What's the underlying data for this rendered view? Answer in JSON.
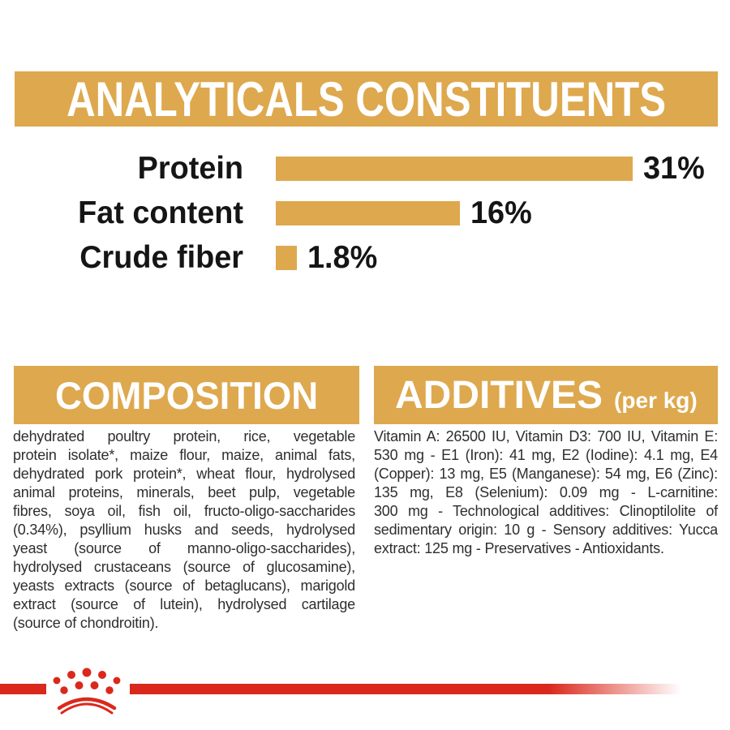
{
  "colors": {
    "gold": "#DEA84E",
    "red": "#DA291C",
    "heading_text": "#FFFFFF",
    "label_text": "#151515",
    "body_text": "#2E2E2E",
    "background": "#FFFFFF"
  },
  "analyticals": {
    "title": "ANALYTICALS CONSTITUENTS",
    "chart_data": {
      "type": "bar",
      "orientation": "horizontal",
      "categories": [
        "Protein",
        "Fat content",
        "Crude fiber"
      ],
      "values": [
        31,
        16,
        1.8
      ],
      "value_labels": [
        "31%",
        "16%",
        "1.8%"
      ],
      "xlim": [
        0,
        31
      ],
      "bar_color": "#DEA84E",
      "grid": false,
      "legend": false
    }
  },
  "composition": {
    "title": "COMPOSITION",
    "lines": [
      "dehydrated poultry protein, rice, vegetable",
      "protein isolate*, maize flour, maize, animal fats,",
      "dehydrated pork protein*, wheat flour, hydrolysed",
      "animal proteins, minerals, beet pulp, vegetable",
      "fibres, soya oil, fish oil, fructo-oligo-saccharides",
      "(0.34%), psyllium husks and seeds, hydrolysed",
      "yeast (source of manno-oligo-saccharides),",
      "hydrolysed crustaceans (source of glucosamine),",
      "yeasts extracts (source of betaglucans), marigold",
      "extract (source of lutein), hydrolysed cartilage",
      "(source of chondroitin)."
    ]
  },
  "additives": {
    "title": "ADDITIVES",
    "unit_note": "(per kg)",
    "lines": [
      "Vitamin A: 26500 IU, Vitamin D3: 700 IU, Vitamin E:",
      "530 mg - E1 (Iron): 41 mg, E2 (Iodine): 4.1 mg, E4",
      "(Copper): 13 mg, E5 (Manganese): 54 mg, E6 (Zinc):",
      "135 mg, E8 (Selenium): 0.09 mg - L-carnitine:",
      "300 mg - Technological additives: Clinoptilolite of",
      "sedimentary origin: 10 g - Sensory additives: Yucca",
      "extract: 125 mg - Preservatives - Antioxidants."
    ]
  },
  "footer": {
    "logo_icon": "royal-canin-crown-icon"
  }
}
